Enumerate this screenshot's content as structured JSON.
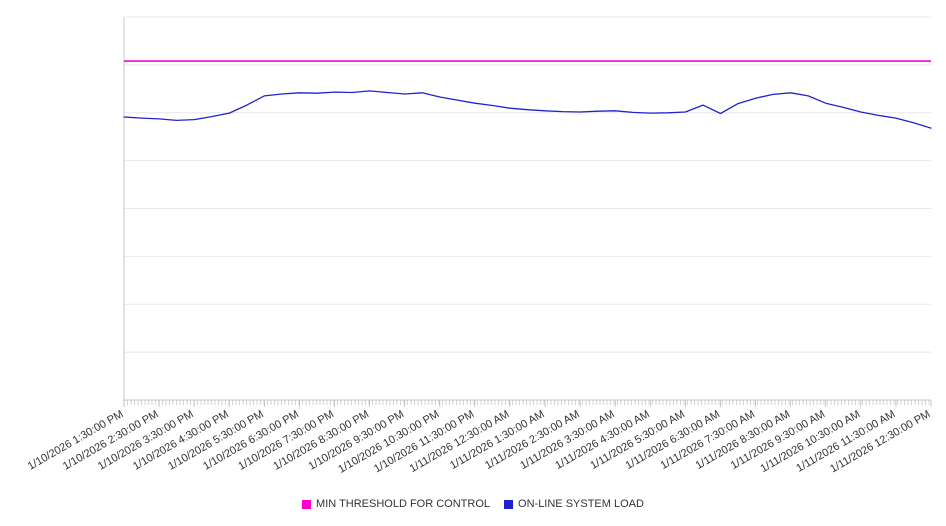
{
  "chart_data": {
    "type": "line",
    "title": "",
    "xlabel": "",
    "ylabel": "",
    "ylim": [
      0,
      100
    ],
    "grid_divisions": 8,
    "grid_on": true,
    "legend_position": "bottom",
    "grid_color": "#e8e8e8",
    "axis_color": "#c9c9c9",
    "tick_color": "#b9b9b9",
    "label_color": "#333333",
    "x_labels": [
      "1/10/2026 1:30:00 PM",
      "1/10/2026 2:30:00 PM",
      "1/10/2026 3:30:00 PM",
      "1/10/2026 4:30:00 PM",
      "1/10/2026 5:30:00 PM",
      "1/10/2026 6:30:00 PM",
      "1/10/2026 7:30:00 PM",
      "1/10/2026 8:30:00 PM",
      "1/10/2026 9:30:00 PM",
      "1/10/2026 10:30:00 PM",
      "1/10/2026 11:30:00 PM",
      "1/11/2026 12:30:00 AM",
      "1/11/2026 1:30:00 AM",
      "1/11/2026 2:30:00 AM",
      "1/11/2026 3:30:00 AM",
      "1/11/2026 4:30:00 AM",
      "1/11/2026 5:30:00 AM",
      "1/11/2026 6:30:00 AM",
      "1/11/2026 7:30:00 AM",
      "1/11/2026 8:30:00 AM",
      "1/11/2026 9:30:00 AM",
      "1/11/2026 10:30:00 AM",
      "1/11/2026 11:30:00 AM",
      "1/11/2026 12:30:00 PM"
    ],
    "series": [
      {
        "name": "MIN THRESHOLD FOR CONTROL",
        "type": "threshold",
        "color": "#ff00cc",
        "value": 88.5
      },
      {
        "name": "ON-LINE SYSTEM LOAD",
        "type": "line",
        "color": "#2222cc",
        "points_per_label": 2,
        "values": [
          73.9,
          73.6,
          73.4,
          73.0,
          73.2,
          74.0,
          74.9,
          77.0,
          79.4,
          79.9,
          80.2,
          80.1,
          80.4,
          80.3,
          80.7,
          80.3,
          79.9,
          80.2,
          79.1,
          78.3,
          77.5,
          76.9,
          76.2,
          75.8,
          75.5,
          75.3,
          75.2,
          75.4,
          75.5,
          75.1,
          74.9,
          75.0,
          75.2,
          77.0,
          74.8,
          77.4,
          78.8,
          79.8,
          80.2,
          79.4,
          77.5,
          76.4,
          75.2,
          74.3,
          73.6,
          72.4,
          71.0
        ]
      }
    ]
  }
}
